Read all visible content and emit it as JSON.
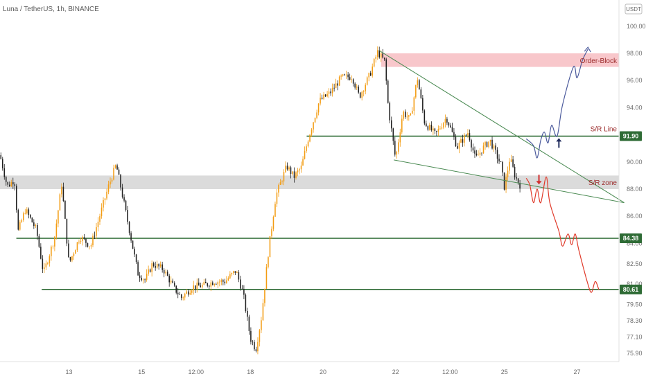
{
  "header": {
    "title": "Luna / TetherUS, 1h, BINANCE",
    "currency": "USDT"
  },
  "chart_data": {
    "type": "candlestick",
    "title": "Luna / TetherUS, 1h, BINANCE",
    "ylim": [
      75.5,
      100.5
    ],
    "y_ticks": [
      100.0,
      98.0,
      96.0,
      94.0,
      92.0,
      90.0,
      88.0,
      86.0,
      84.0,
      82.5,
      81.0,
      79.5,
      78.3,
      77.1,
      75.9
    ],
    "y_tick_labels": [
      "100.00",
      "98.00",
      "96.00",
      "94.00",
      "92.00",
      "90.00",
      "88.00",
      "86.00",
      "84.00",
      "82.50",
      "81.00",
      "79.50",
      "78.30",
      "77.10",
      "75.90"
    ],
    "x_ticks": [
      {
        "label": "13",
        "pos": 13.0
      },
      {
        "label": "15",
        "pos": 15.0
      },
      {
        "label": "12:00",
        "pos": 16.5
      },
      {
        "label": "18",
        "pos": 18.0
      },
      {
        "label": "20",
        "pos": 20.0
      },
      {
        "label": "22",
        "pos": 22.0
      },
      {
        "label": "12:00",
        "pos": 23.5
      },
      {
        "label": "25",
        "pos": 25.0
      },
      {
        "label": "27",
        "pos": 27.0
      }
    ],
    "xlim": [
      11.1,
      28.9
    ],
    "price_path": [
      [
        11.1,
        90.5
      ],
      [
        11.3,
        88.2
      ],
      [
        11.5,
        88.7
      ],
      [
        11.6,
        84.9
      ],
      [
        11.8,
        86.5
      ],
      [
        12.1,
        85.0
      ],
      [
        12.3,
        81.8
      ],
      [
        12.6,
        84.4
      ],
      [
        12.8,
        88.4
      ],
      [
        13.0,
        82.5
      ],
      [
        13.3,
        84.5
      ],
      [
        13.6,
        83.8
      ],
      [
        13.9,
        86.5
      ],
      [
        14.1,
        88.3
      ],
      [
        14.3,
        89.8
      ],
      [
        14.5,
        87.2
      ],
      [
        14.7,
        84.5
      ],
      [
        14.9,
        81.8
      ],
      [
        15.1,
        81.3
      ],
      [
        15.3,
        82.5
      ],
      [
        15.6,
        82.1
      ],
      [
        15.9,
        80.7
      ],
      [
        16.1,
        80.0
      ],
      [
        16.4,
        80.8
      ],
      [
        16.7,
        80.9
      ],
      [
        17.0,
        81.2
      ],
      [
        17.3,
        81.2
      ],
      [
        17.6,
        82.0
      ],
      [
        17.8,
        80.3
      ],
      [
        18.0,
        77.0
      ],
      [
        18.15,
        76.2
      ],
      [
        18.3,
        78.5
      ],
      [
        18.5,
        83.5
      ],
      [
        18.7,
        87.5
      ],
      [
        19.0,
        89.7
      ],
      [
        19.2,
        88.9
      ],
      [
        19.4,
        89.6
      ],
      [
        19.6,
        91.8
      ],
      [
        19.9,
        94.5
      ],
      [
        20.2,
        95.1
      ],
      [
        20.5,
        96.2
      ],
      [
        20.8,
        96.3
      ],
      [
        21.0,
        94.8
      ],
      [
        21.3,
        96.5
      ],
      [
        21.5,
        98.1
      ],
      [
        21.7,
        97.4
      ],
      [
        21.8,
        94.0
      ],
      [
        22.0,
        90.2
      ],
      [
        22.2,
        93.7
      ],
      [
        22.4,
        93.1
      ],
      [
        22.6,
        96.2
      ],
      [
        22.8,
        92.9
      ],
      [
        23.1,
        92.0
      ],
      [
        23.4,
        93.3
      ],
      [
        23.7,
        91.1
      ],
      [
        24.0,
        92.2
      ],
      [
        24.2,
        90.2
      ],
      [
        24.4,
        91.0
      ],
      [
        24.6,
        91.6
      ],
      [
        24.9,
        89.8
      ],
      [
        25.0,
        88.1
      ],
      [
        25.15,
        90.3
      ],
      [
        25.3,
        88.9
      ],
      [
        25.45,
        88.2
      ]
    ],
    "candle_count": 300,
    "colors": {
      "up": "#f39c12",
      "down": "#1f1f1f"
    },
    "levels": [
      {
        "name": "S/R Line",
        "value": 91.9,
        "badge": "91.90",
        "color": "#2e6b35"
      },
      {
        "name": "",
        "value": 84.38,
        "badge": "84.38",
        "color": "#2e6b35"
      },
      {
        "name": "",
        "value": 80.61,
        "badge": "80.61",
        "color": "#2e6b35"
      }
    ],
    "zones": [
      {
        "name": "Order-Block",
        "from": 97.0,
        "to": 98.0,
        "color": "#f8c4c8"
      },
      {
        "name": "S/R zone",
        "from": 88.0,
        "to": 89.0,
        "color": "#d9d9d9"
      }
    ],
    "annotations": {
      "order_block": "Order-Block",
      "sr_line": "S/R Line",
      "sr_zone": "S/R zone"
    },
    "wedge": {
      "upper": [
        [
          21.55,
          98.2
        ],
        [
          28.3,
          87.0
        ]
      ],
      "lower": [
        [
          21.95,
          90.15
        ],
        [
          28.3,
          87.0
        ]
      ],
      "color": "#4a8a52"
    },
    "scenario_bull": [
      [
        25.6,
        91.7
      ],
      [
        25.8,
        91.2
      ],
      [
        25.9,
        90.3
      ],
      [
        26.0,
        91.6
      ],
      [
        26.1,
        92.2
      ],
      [
        26.2,
        91.4
      ],
      [
        26.3,
        92.7
      ],
      [
        26.45,
        91.9
      ],
      [
        26.6,
        94.2
      ],
      [
        26.9,
        97.0
      ],
      [
        27.0,
        96.2
      ],
      [
        27.15,
        97.5
      ],
      [
        27.3,
        98.3
      ]
    ],
    "scenario_bear": [
      [
        25.6,
        88.8
      ],
      [
        25.7,
        88.3
      ],
      [
        25.8,
        87.0
      ],
      [
        25.9,
        88.0
      ],
      [
        26.0,
        87.0
      ],
      [
        26.15,
        88.9
      ],
      [
        26.25,
        87.0
      ],
      [
        26.5,
        84.9
      ],
      [
        26.6,
        83.8
      ],
      [
        26.75,
        84.7
      ],
      [
        26.85,
        83.9
      ],
      [
        26.95,
        84.7
      ],
      [
        27.05,
        83.5
      ],
      [
        27.3,
        81.0
      ],
      [
        27.4,
        80.4
      ],
      [
        27.5,
        81.2
      ],
      [
        27.6,
        80.6
      ]
    ],
    "scenario_colors": {
      "bull": "#4b5a9c",
      "bear": "#e03a2a"
    },
    "arrows": [
      {
        "direction": "up",
        "x": 26.5,
        "y": 91.4,
        "color": "#1f2a5c"
      },
      {
        "direction": "down",
        "x": 25.95,
        "y": 88.7,
        "color": "#d32f2f"
      }
    ]
  }
}
